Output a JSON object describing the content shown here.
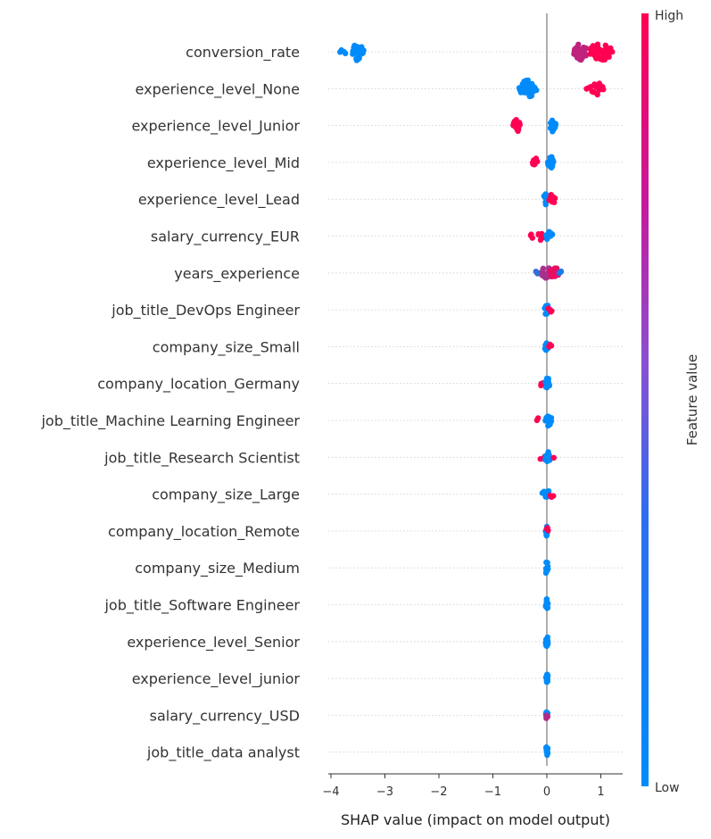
{
  "chart_data": {
    "type": "scatter",
    "subtype": "shap-beeswarm",
    "xlabel": "SHAP value (impact on model output)",
    "xlim": [
      -4.2,
      1.4
    ],
    "xticks": [
      -4,
      -3,
      -2,
      -1,
      0,
      1
    ],
    "colorbar": {
      "label": "Feature value",
      "high": "High",
      "low": "Low",
      "colors": [
        "#008bfb",
        "#ff0052"
      ]
    },
    "features": [
      {
        "name": "conversion_rate",
        "clusters": [
          {
            "x": [
              -3.85,
              -3.7
            ],
            "level": 0.0,
            "n": 4
          },
          {
            "x": [
              -3.6,
              -3.4
            ],
            "level": 0.0,
            "n": 28
          },
          {
            "x": [
              0.5,
              0.75
            ],
            "level": 0.75,
            "n": 26
          },
          {
            "x": [
              0.8,
              1.2
            ],
            "level": 1.0,
            "n": 45
          }
        ]
      },
      {
        "name": "experience_level_None",
        "clusters": [
          {
            "x": [
              -0.5,
              -0.2
            ],
            "level": 0.0,
            "n": 40
          },
          {
            "x": [
              0.72,
              0.78
            ],
            "level": 1.0,
            "n": 2
          },
          {
            "x": [
              0.82,
              1.05
            ],
            "level": 1.0,
            "n": 16
          }
        ]
      },
      {
        "name": "experience_level_Junior",
        "clusters": [
          {
            "x": [
              -0.62,
              -0.5
            ],
            "level": 1.0,
            "n": 14
          },
          {
            "x": [
              0.07,
              0.16
            ],
            "level": 0.0,
            "n": 20
          }
        ]
      },
      {
        "name": "experience_level_Mid",
        "clusters": [
          {
            "x": [
              -0.26,
              -0.18
            ],
            "level": 1.0,
            "n": 10
          },
          {
            "x": [
              0.03,
              0.12
            ],
            "level": 0.0,
            "n": 22
          }
        ]
      },
      {
        "name": "experience_level_Lead",
        "clusters": [
          {
            "x": [
              -0.05,
              0.03
            ],
            "level": 0.0,
            "n": 12
          },
          {
            "x": [
              0.03,
              0.15
            ],
            "level": 1.0,
            "n": 10
          }
        ]
      },
      {
        "name": "salary_currency_EUR",
        "clusters": [
          {
            "x": [
              -0.32,
              -0.25
            ],
            "level": 1.0,
            "n": 3
          },
          {
            "x": [
              -0.18,
              -0.05
            ],
            "level": 1.0,
            "n": 6
          },
          {
            "x": [
              -0.02,
              0.1
            ],
            "level": 0.0,
            "n": 14
          }
        ]
      },
      {
        "name": "years_experience",
        "clusters": [
          {
            "x": [
              -0.2,
              -0.1
            ],
            "level": 0.2,
            "n": 4
          },
          {
            "x": [
              -0.1,
              0.05
            ],
            "level": 0.65,
            "n": 18
          },
          {
            "x": [
              0.05,
              0.22
            ],
            "level": 0.9,
            "n": 14
          },
          {
            "x": [
              0.22,
              0.28
            ],
            "level": 0.1,
            "n": 3
          }
        ]
      },
      {
        "name": "job_title_DevOps Engineer",
        "clusters": [
          {
            "x": [
              -0.03,
              0.02
            ],
            "level": 0.0,
            "n": 12
          },
          {
            "x": [
              0.03,
              0.1
            ],
            "level": 1.0,
            "n": 5
          }
        ]
      },
      {
        "name": "company_size_Small",
        "clusters": [
          {
            "x": [
              -0.03,
              0.02
            ],
            "level": 0.0,
            "n": 12
          },
          {
            "x": [
              0.02,
              0.08
            ],
            "level": 1.0,
            "n": 4
          }
        ]
      },
      {
        "name": "company_location_Germany",
        "clusters": [
          {
            "x": [
              -0.12,
              -0.04
            ],
            "level": 1.0,
            "n": 5
          },
          {
            "x": [
              -0.03,
              0.05
            ],
            "level": 0.0,
            "n": 12
          }
        ]
      },
      {
        "name": "job_title_Machine Learning Engineer",
        "clusters": [
          {
            "x": [
              -0.2,
              -0.14
            ],
            "level": 1.0,
            "n": 2
          },
          {
            "x": [
              -0.03,
              0.08
            ],
            "level": 0.0,
            "n": 14
          }
        ]
      },
      {
        "name": "job_title_Research Scientist",
        "clusters": [
          {
            "x": [
              -0.12,
              -0.04
            ],
            "level": 1.0,
            "n": 3
          },
          {
            "x": [
              -0.03,
              0.06
            ],
            "level": 0.0,
            "n": 12
          },
          {
            "x": [
              0.1,
              0.16
            ],
            "level": 1.0,
            "n": 2
          }
        ]
      },
      {
        "name": "company_size_Large",
        "clusters": [
          {
            "x": [
              -0.08,
              -0.02
            ],
            "level": 0.0,
            "n": 4
          },
          {
            "x": [
              -0.02,
              0.05
            ],
            "level": 0.0,
            "n": 10
          },
          {
            "x": [
              0.05,
              0.12
            ],
            "level": 1.0,
            "n": 3
          }
        ]
      },
      {
        "name": "company_location_Remote",
        "clusters": [
          {
            "x": [
              -0.02,
              0.02
            ],
            "level": 0.0,
            "n": 12
          },
          {
            "x": [
              -0.01,
              0.01
            ],
            "level": 1.0,
            "n": 4
          }
        ]
      },
      {
        "name": "company_size_Medium",
        "clusters": [
          {
            "x": [
              -0.01,
              0.01
            ],
            "level": 0.0,
            "n": 14
          }
        ]
      },
      {
        "name": "job_title_Software Engineer",
        "clusters": [
          {
            "x": [
              -0.01,
              0.01
            ],
            "level": 0.0,
            "n": 14
          }
        ]
      },
      {
        "name": "experience_level_Senior",
        "clusters": [
          {
            "x": [
              -0.01,
              0.01
            ],
            "level": 0.0,
            "n": 14
          }
        ]
      },
      {
        "name": "experience_level_junior",
        "clusters": [
          {
            "x": [
              -0.01,
              0.01
            ],
            "level": 0.0,
            "n": 14
          }
        ]
      },
      {
        "name": "salary_currency_USD",
        "clusters": [
          {
            "x": [
              -0.01,
              0.01
            ],
            "level": 0.0,
            "n": 10
          },
          {
            "x": [
              -0.01,
              0.01
            ],
            "level": 0.7,
            "n": 4
          }
        ]
      },
      {
        "name": "job_title_data analyst",
        "clusters": [
          {
            "x": [
              -0.01,
              0.01
            ],
            "level": 0.0,
            "n": 14
          }
        ]
      }
    ]
  }
}
